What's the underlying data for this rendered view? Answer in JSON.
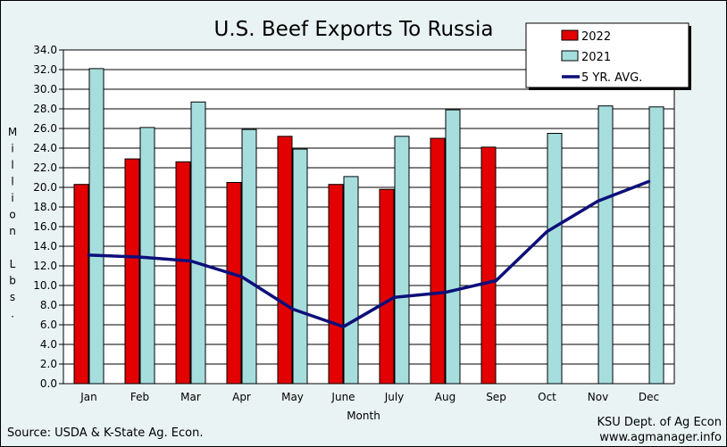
{
  "chart_data": {
    "type": "bar",
    "title": "U.S. Beef Exports To Russia",
    "xlabel": "Month",
    "ylabel": "Million Lbs.",
    "ylim": [
      0,
      34
    ],
    "ytick_step": 2,
    "grid": true,
    "legend_position": "top-right",
    "categories": [
      "Jan",
      "Feb",
      "Mar",
      "Apr",
      "May",
      "June",
      "July",
      "Aug",
      "Sep",
      "Oct",
      "Nov",
      "Dec"
    ],
    "series": [
      {
        "name": "2022",
        "type": "bar",
        "color": "#e20000",
        "values": [
          20.3,
          22.9,
          22.6,
          20.5,
          25.2,
          20.3,
          19.8,
          25.0,
          24.1,
          null,
          null,
          null
        ]
      },
      {
        "name": "2021",
        "type": "bar",
        "color": "#a6dede",
        "values": [
          32.1,
          26.1,
          28.7,
          25.9,
          23.9,
          21.1,
          25.2,
          27.9,
          null,
          25.5,
          28.3,
          28.2
        ]
      },
      {
        "name": "5 YR. AVG.",
        "type": "line",
        "color": "#0d0f7a",
        "values": [
          13.1,
          12.9,
          12.5,
          10.9,
          7.6,
          5.8,
          8.8,
          9.3,
          10.5,
          15.5,
          18.6,
          20.6
        ]
      }
    ],
    "source": "Source:  USDA & K-State Ag. Econ.",
    "credit_line1": "KSU Dept. of Ag Econ",
    "credit_line2": "www.agmanager.info"
  }
}
